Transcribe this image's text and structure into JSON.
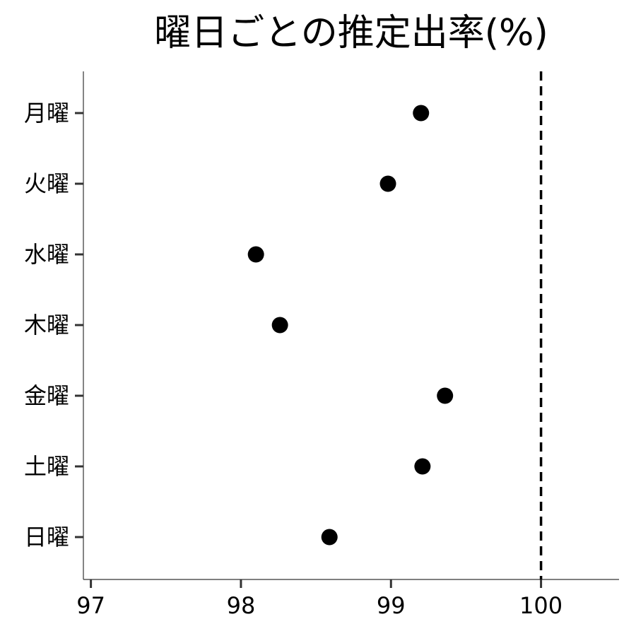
{
  "chart_data": {
    "type": "scatter",
    "title": "曜日ごとの推定出率(%)",
    "xlabel": "",
    "ylabel": "",
    "xlim": [
      96.95,
      100.52
    ],
    "xticks": [
      "97",
      "98",
      "99",
      "100"
    ],
    "categories": [
      "月曜",
      "火曜",
      "水曜",
      "木曜",
      "金曜",
      "土曜",
      "日曜"
    ],
    "values": [
      99.2,
      98.98,
      98.1,
      98.26,
      99.36,
      99.21,
      98.59
    ],
    "reference_line": {
      "x": 100,
      "style": "dashed"
    },
    "grid": false,
    "legend": "none"
  }
}
